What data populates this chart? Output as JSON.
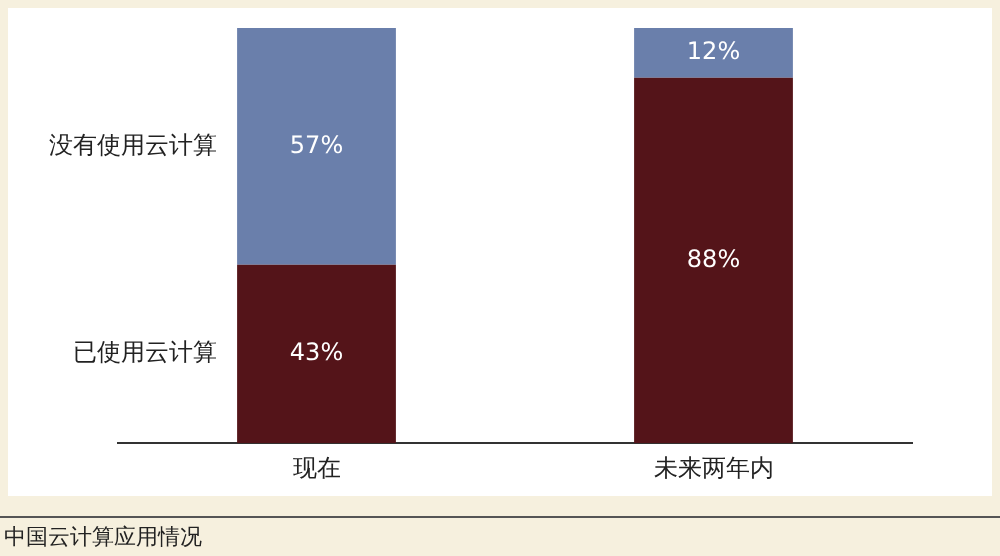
{
  "chart_data": {
    "type": "bar",
    "stacked": true,
    "legend": false,
    "grid": false,
    "tick_labels": "x",
    "categories": [
      "现在",
      "未来两年内"
    ],
    "series": [
      {
        "name": "已使用云计算",
        "color": "#541419",
        "values": [
          43,
          88
        ],
        "value_labels": [
          "43%",
          "88%"
        ]
      },
      {
        "name": "没有使用云计算",
        "color": "#6a7fab",
        "values": [
          57,
          12
        ],
        "value_labels": [
          "57%",
          "12%"
        ]
      }
    ],
    "annotations": [
      "中国云计算应用情况"
    ]
  }
}
